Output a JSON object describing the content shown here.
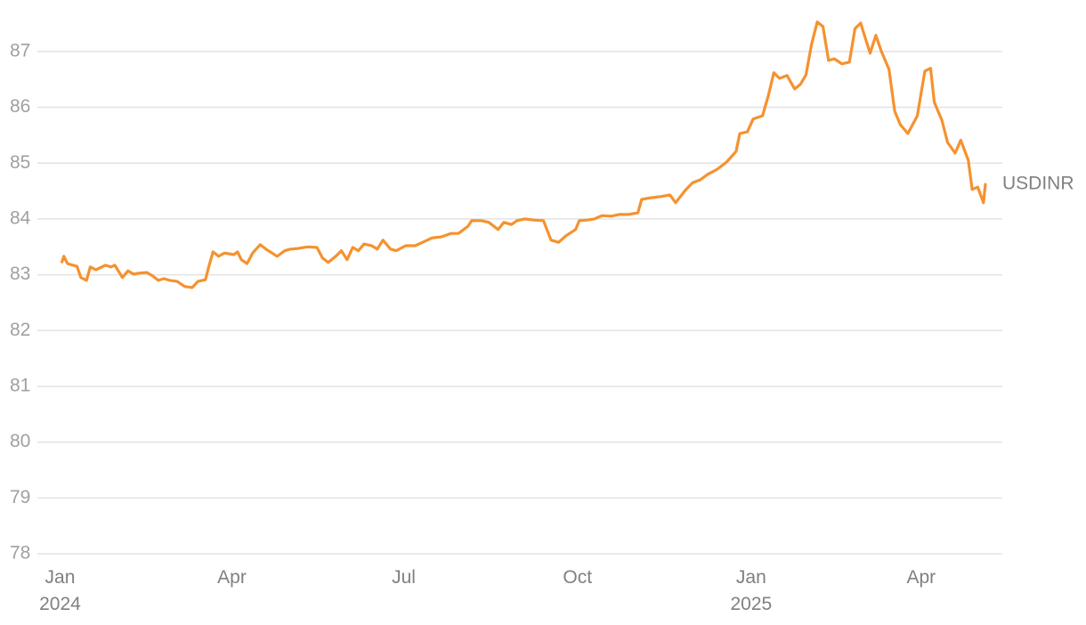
{
  "chart_data": {
    "type": "line",
    "x": [
      "2024-01-02",
      "2024-01-03",
      "2024-01-05",
      "2024-01-10",
      "2024-01-12",
      "2024-01-15",
      "2024-01-17",
      "2024-01-20",
      "2024-01-25",
      "2024-01-28",
      "2024-01-30",
      "2024-02-03",
      "2024-02-06",
      "2024-02-09",
      "2024-02-12",
      "2024-02-16",
      "2024-02-19",
      "2024-02-22",
      "2024-02-25",
      "2024-02-28",
      "2024-03-03",
      "2024-03-07",
      "2024-03-11",
      "2024-03-14",
      "2024-03-18",
      "2024-03-20",
      "2024-03-22",
      "2024-03-25",
      "2024-03-28",
      "2024-04-02",
      "2024-04-04",
      "2024-04-06",
      "2024-04-09",
      "2024-04-12",
      "2024-04-16",
      "2024-04-19",
      "2024-04-25",
      "2024-04-29",
      "2024-05-02",
      "2024-05-06",
      "2024-05-11",
      "2024-05-16",
      "2024-05-19",
      "2024-05-22",
      "2024-05-26",
      "2024-05-29",
      "2024-06-01",
      "2024-06-04",
      "2024-06-07",
      "2024-06-10",
      "2024-06-14",
      "2024-06-17",
      "2024-06-20",
      "2024-06-24",
      "2024-06-27",
      "2024-07-02",
      "2024-07-07",
      "2024-07-11",
      "2024-07-16",
      "2024-07-21",
      "2024-07-26",
      "2024-07-30",
      "2024-08-04",
      "2024-08-06",
      "2024-08-11",
      "2024-08-15",
      "2024-08-20",
      "2024-08-23",
      "2024-08-27",
      "2024-08-30",
      "2024-09-03",
      "2024-09-08",
      "2024-09-13",
      "2024-09-17",
      "2024-09-21",
      "2024-09-25",
      "2024-09-30",
      "2024-10-02",
      "2024-10-06",
      "2024-10-10",
      "2024-10-14",
      "2024-10-19",
      "2024-10-23",
      "2024-10-28",
      "2024-11-02",
      "2024-11-04",
      "2024-11-09",
      "2024-11-14",
      "2024-11-19",
      "2024-11-22",
      "2024-11-27",
      "2024-12-01",
      "2024-12-05",
      "2024-12-09",
      "2024-12-14",
      "2024-12-19",
      "2024-12-24",
      "2024-12-26",
      "2024-12-30",
      "2025-01-02",
      "2025-01-07",
      "2025-01-10",
      "2025-01-13",
      "2025-01-16",
      "2025-01-20",
      "2025-01-24",
      "2025-01-27",
      "2025-01-30",
      "2025-02-02",
      "2025-02-05",
      "2025-02-08",
      "2025-02-11",
      "2025-02-14",
      "2025-02-18",
      "2025-02-22",
      "2025-02-25",
      "2025-02-28",
      "2025-03-02",
      "2025-03-05",
      "2025-03-08",
      "2025-03-11",
      "2025-03-15",
      "2025-03-18",
      "2025-03-21",
      "2025-03-25",
      "2025-03-30",
      "2025-04-03",
      "2025-04-06",
      "2025-04-08",
      "2025-04-12",
      "2025-04-15",
      "2025-04-19",
      "2025-04-22",
      "2025-04-26",
      "2025-04-28",
      "2025-05-01",
      "2025-05-04",
      "2025-05-05"
    ],
    "series": [
      {
        "name": "USDINR",
        "color": "#f5922f",
        "values": [
          83.23,
          83.33,
          83.2,
          83.15,
          82.95,
          82.9,
          83.14,
          83.09,
          83.17,
          83.14,
          83.17,
          82.95,
          83.07,
          83.01,
          83.03,
          83.04,
          82.98,
          82.9,
          82.93,
          82.9,
          82.88,
          82.79,
          82.77,
          82.88,
          82.91,
          83.17,
          83.41,
          83.33,
          83.39,
          83.36,
          83.41,
          83.27,
          83.2,
          83.39,
          83.54,
          83.46,
          83.33,
          83.43,
          83.46,
          83.47,
          83.5,
          83.49,
          83.3,
          83.22,
          83.33,
          83.43,
          83.27,
          83.49,
          83.43,
          83.55,
          83.52,
          83.46,
          83.62,
          83.46,
          83.43,
          83.52,
          83.52,
          83.58,
          83.66,
          83.68,
          83.74,
          83.74,
          83.87,
          83.97,
          83.97,
          83.94,
          83.81,
          83.94,
          83.9,
          83.97,
          84.0,
          83.98,
          83.97,
          83.62,
          83.58,
          83.7,
          83.81,
          83.97,
          83.98,
          84.0,
          84.06,
          84.05,
          84.08,
          84.08,
          84.11,
          84.35,
          84.38,
          84.4,
          84.43,
          84.29,
          84.51,
          84.65,
          84.7,
          84.8,
          84.89,
          85.02,
          85.21,
          85.53,
          85.56,
          85.79,
          85.85,
          86.2,
          86.62,
          86.52,
          86.57,
          86.33,
          86.41,
          86.58,
          87.13,
          87.53,
          87.45,
          86.84,
          86.87,
          86.78,
          86.81,
          87.41,
          87.51,
          87.29,
          86.97,
          87.29,
          87.0,
          86.68,
          85.93,
          85.69,
          85.53,
          85.85,
          86.65,
          86.7,
          86.09,
          85.77,
          85.37,
          85.18,
          85.41,
          85.05,
          84.53,
          84.57,
          84.29,
          84.62
        ]
      }
    ],
    "xlim": [
      "2023-12-20",
      "2025-05-14"
    ],
    "xticks": [
      {
        "value": "2024-01-01",
        "label": "Jan 2024"
      },
      {
        "value": "2024-04-01",
        "label": "Apr"
      },
      {
        "value": "2024-07-01",
        "label": "Jul"
      },
      {
        "value": "2024-10-01",
        "label": "Oct"
      },
      {
        "value": "2025-01-01",
        "label": "Jan 2025"
      },
      {
        "value": "2025-04-01",
        "label": "Apr"
      }
    ],
    "ylim": [
      78,
      87.7
    ],
    "yticks": [
      78,
      79,
      80,
      81,
      82,
      83,
      84,
      85,
      86,
      87
    ],
    "grid": true
  }
}
